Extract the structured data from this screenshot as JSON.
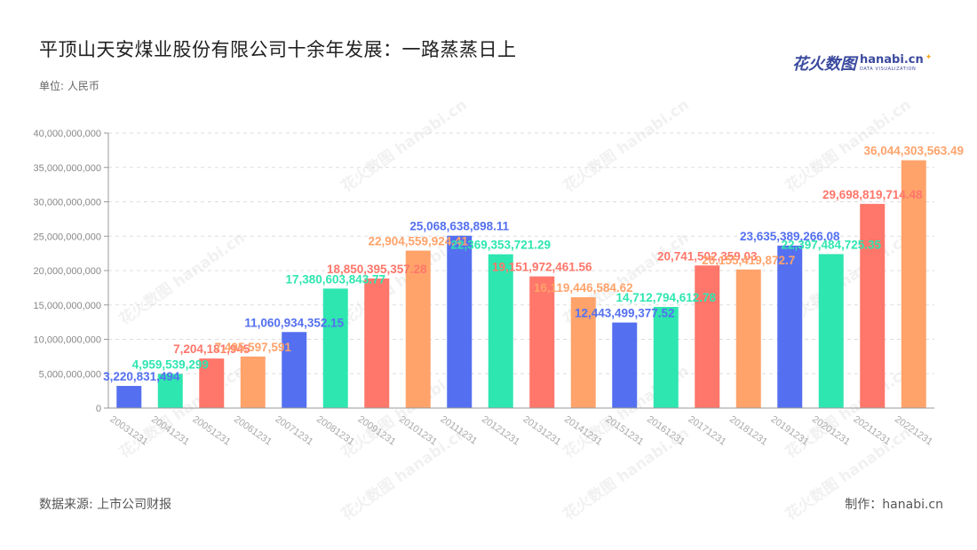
{
  "header": {
    "title": "平顶山天安煤业股份有限公司十余年发展：一路蒸蒸日上",
    "unit": "单位: 人民币"
  },
  "brand": {
    "cn": "花火数图",
    "en": "hanabi.cn",
    "sub": "DATA VISUALIZATION"
  },
  "footer": {
    "source": "数据来源: 上市公司财报",
    "maker": "制作：hanabi.cn"
  },
  "watermark": "花火数图 hanabi.cn",
  "colors": {
    "blue": "#5470f0",
    "green": "#2ee6b0",
    "red": "#ff766a",
    "orange": "#ffa36b",
    "grid": "#dddddd",
    "axis": "#999999"
  },
  "chart_data": {
    "type": "bar",
    "title": "平顶山天安煤业股份有限公司十余年发展：一路蒸蒸日上",
    "xlabel": "",
    "ylabel": "",
    "ylim": [
      0,
      40000000000
    ],
    "yticks": [
      0,
      5000000000,
      10000000000,
      15000000000,
      20000000000,
      25000000000,
      30000000000,
      35000000000,
      40000000000
    ],
    "ytick_labels": [
      "0",
      "5,000,000,000",
      "10,000,000,000",
      "15,000,000,000",
      "20,000,000,000",
      "25,000,000,000",
      "30,000,000,000",
      "35,000,000,000",
      "40,000,000,000"
    ],
    "grid": true,
    "categories": [
      "20031231",
      "20041231",
      "20051231",
      "20061231",
      "20071231",
      "20081231",
      "20091231",
      "20101231",
      "20111231",
      "20121231",
      "20131231",
      "20141231",
      "20151231",
      "20161231",
      "20171231",
      "20181231",
      "20191231",
      "20201231",
      "20211231",
      "20221231"
    ],
    "values": [
      3220831494,
      4959539299,
      7204181945,
      7495597591,
      11060934352.15,
      17380603843.77,
      18850395357.28,
      22904559924.41,
      25068638898.11,
      22369353721.29,
      19151972461.56,
      16119446584.62,
      12443499377.52,
      14712794612.78,
      20741502359.03,
      20155419872.7,
      23635389266.08,
      22397484725.35,
      29698819714.48,
      36044303563.49
    ],
    "labels": [
      "3,220,831,494",
      "4,959,539,299",
      "7,204,181,945",
      "7,495,597,591",
      "11,060,934,352.15",
      "17,380,603,843.77",
      "18,850,395,357.28",
      "22,904,559,924.41",
      "25,068,638,898.11",
      "22,369,353,721.29",
      "19,151,972,461.56",
      "16,119,446,584.62",
      "12,443,499,377.52",
      "14,712,794,612.78",
      "20,741,502,359.03",
      "20,155,419,872.7",
      "23,635,389,266.08",
      "22,397,484,725.35",
      "29,698,819,714.48",
      "36,044,303,563.49"
    ],
    "bar_colors": [
      "blue",
      "green",
      "red",
      "orange",
      "blue",
      "green",
      "red",
      "orange",
      "blue",
      "green",
      "red",
      "orange",
      "blue",
      "green",
      "red",
      "orange",
      "blue",
      "green",
      "red",
      "orange"
    ]
  }
}
